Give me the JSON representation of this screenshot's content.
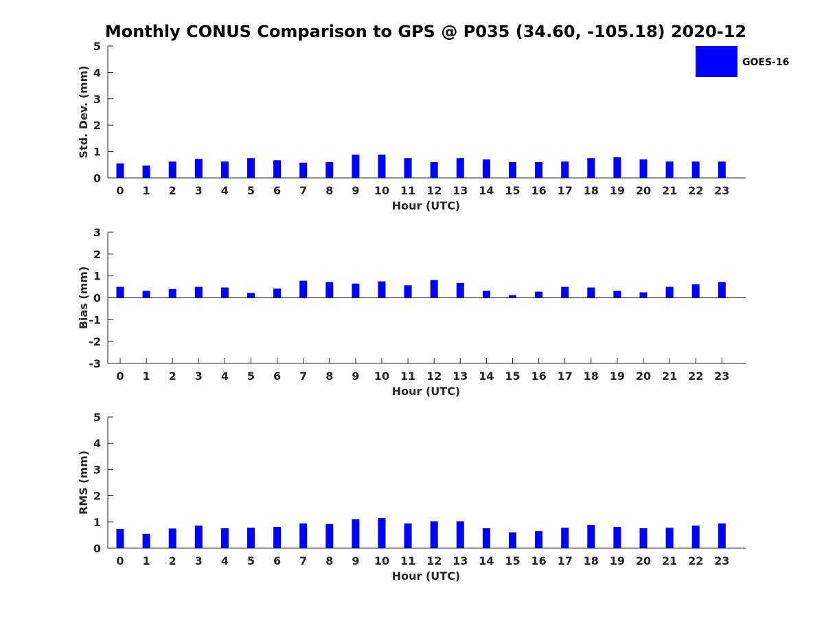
{
  "title": "Monthly CONUS Comparison to GPS @ P035 (34.60, -105.18) 2020-12",
  "legend": {
    "label": "GOES-16",
    "color": "#0000ff",
    "placement": "top-right"
  },
  "chart_data": [
    {
      "type": "bar",
      "name": "std-dev",
      "xlabel": "Hour (UTC)",
      "ylabel": "Std. Dev. (mm)",
      "categories": [
        "0",
        "1",
        "2",
        "3",
        "4",
        "5",
        "6",
        "7",
        "8",
        "9",
        "10",
        "11",
        "12",
        "13",
        "14",
        "15",
        "16",
        "17",
        "18",
        "19",
        "20",
        "21",
        "22",
        "23"
      ],
      "ylim": [
        0,
        5
      ],
      "yticks": [
        0,
        1,
        2,
        3,
        4,
        5
      ],
      "series": [
        {
          "name": "GOES-16",
          "color": "#0000ff",
          "values": [
            0.55,
            0.47,
            0.62,
            0.72,
            0.62,
            0.75,
            0.67,
            0.58,
            0.6,
            0.88,
            0.88,
            0.75,
            0.6,
            0.75,
            0.7,
            0.6,
            0.6,
            0.62,
            0.75,
            0.78,
            0.7,
            0.62,
            0.62,
            0.62
          ]
        }
      ]
    },
    {
      "type": "bar",
      "name": "bias",
      "xlabel": "Hour (UTC)",
      "ylabel": "Bias (mm)",
      "categories": [
        "0",
        "1",
        "2",
        "3",
        "4",
        "5",
        "6",
        "7",
        "8",
        "9",
        "10",
        "11",
        "12",
        "13",
        "14",
        "15",
        "16",
        "17",
        "18",
        "19",
        "20",
        "21",
        "22",
        "23"
      ],
      "ylim": [
        -3,
        3
      ],
      "yticks": [
        -3,
        -2,
        -1,
        0,
        1,
        2,
        3
      ],
      "series": [
        {
          "name": "GOES-16",
          "color": "#0000ff",
          "values": [
            0.5,
            0.32,
            0.4,
            0.5,
            0.47,
            0.22,
            0.42,
            0.78,
            0.72,
            0.65,
            0.75,
            0.57,
            0.81,
            0.68,
            0.32,
            0.12,
            0.28,
            0.5,
            0.47,
            0.32,
            0.25,
            0.5,
            0.62,
            0.72
          ]
        }
      ]
    },
    {
      "type": "bar",
      "name": "rms",
      "xlabel": "Hour (UTC)",
      "ylabel": "RMS (mm)",
      "categories": [
        "0",
        "1",
        "2",
        "3",
        "4",
        "5",
        "6",
        "7",
        "8",
        "9",
        "10",
        "11",
        "12",
        "13",
        "14",
        "15",
        "16",
        "17",
        "18",
        "19",
        "20",
        "21",
        "22",
        "23"
      ],
      "ylim": [
        0,
        5
      ],
      "yticks": [
        0,
        1,
        2,
        3,
        4,
        5
      ],
      "series": [
        {
          "name": "GOES-16",
          "color": "#0000ff",
          "values": [
            0.73,
            0.55,
            0.75,
            0.86,
            0.76,
            0.78,
            0.81,
            0.94,
            0.92,
            1.1,
            1.15,
            0.94,
            1.02,
            1.02,
            0.76,
            0.6,
            0.65,
            0.78,
            0.89,
            0.81,
            0.76,
            0.78,
            0.86,
            0.94
          ]
        }
      ]
    }
  ]
}
